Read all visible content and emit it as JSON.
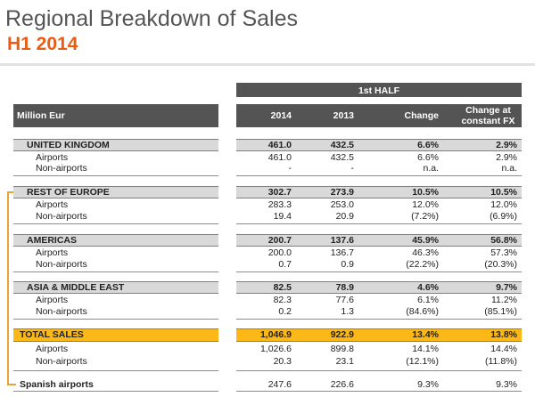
{
  "header": {
    "title": "Regional Breakdown of Sales",
    "subtitle": "H1 2014"
  },
  "table": {
    "group_header": "1st HALF",
    "unit_label": "Million Eur",
    "columns": [
      "2014",
      "2013",
      "Change",
      "Change at constant FX"
    ],
    "column_change_fx_line1": "Change at",
    "column_change_fx_line2": "constant FX",
    "sections": [
      {
        "name": "UNITED KINGDOM",
        "values": [
          "461.0",
          "432.5",
          "6.6%",
          "2.9%"
        ],
        "rows": [
          {
            "label": "Airports",
            "values": [
              "461.0",
              "432.5",
              "6.6%",
              "2.9%"
            ]
          },
          {
            "label": "Non-airports",
            "values": [
              "-",
              "-",
              "n.a.",
              "n.a."
            ]
          }
        ]
      },
      {
        "name": "REST OF EUROPE",
        "values": [
          "302.7",
          "273.9",
          "10.5%",
          "10.5%"
        ],
        "rows": [
          {
            "label": "Airports",
            "values": [
              "283.3",
              "253.0",
              "12.0%",
              "12.0%"
            ]
          },
          {
            "label": "Non-airports",
            "values": [
              "19.4",
              "20.9",
              "(7.2%)",
              "(6.9%)"
            ]
          }
        ]
      },
      {
        "name": "AMERICAS",
        "values": [
          "200.7",
          "137.6",
          "45.9%",
          "56.8%"
        ],
        "rows": [
          {
            "label": "Airports",
            "values": [
              "200.0",
              "136.7",
              "46.3%",
              "57.3%"
            ]
          },
          {
            "label": "Non-airports",
            "values": [
              "0.7",
              "0.9",
              "(22.2%)",
              "(20.3%)"
            ]
          }
        ]
      },
      {
        "name": "ASIA & MIDDLE EAST",
        "values": [
          "82.5",
          "78.9",
          "4.6%",
          "9.7%"
        ],
        "rows": [
          {
            "label": "Airports",
            "values": [
              "82.3",
              "77.6",
              "6.1%",
              "11.2%"
            ]
          },
          {
            "label": "Non-airports",
            "values": [
              "0.2",
              "1.3",
              "(84.6%)",
              "(85.1%)"
            ]
          }
        ]
      },
      {
        "name": "TOTAL SALES",
        "values": [
          "1,046.9",
          "922.9",
          "13.4%",
          "13.8%"
        ],
        "rows": [
          {
            "label": "Airports",
            "values": [
              "1,026.6",
              "899.8",
              "14.1%",
              "14.4%"
            ]
          },
          {
            "label": "Non-airports",
            "values": [
              "20.3",
              "23.1",
              "(12.1%)",
              "(11.8%)"
            ]
          }
        ]
      }
    ],
    "footer_row": {
      "label": "Spanish airports",
      "values": [
        "247.6",
        "226.6",
        "9.3%",
        "9.3%"
      ]
    }
  },
  "colors": {
    "title": "#555555",
    "subtitle": "#e85c13",
    "header_bar": "#545454",
    "section_bar": "#d9d9d9",
    "total_bar": "#fbb816",
    "bracket": "#e8a33a"
  }
}
